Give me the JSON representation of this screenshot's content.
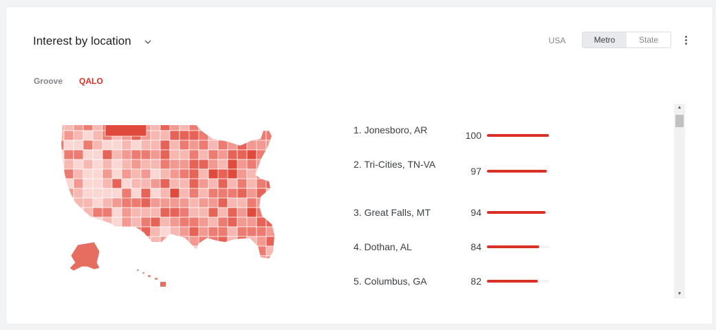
{
  "header": {
    "title": "Interest by location",
    "title_dropdown_icon": "chevron-down-icon",
    "menu_icon": "more-vert-icon"
  },
  "geo_resolution": {
    "country": "USA",
    "options": [
      "Metro",
      "State"
    ],
    "selected": "Metro"
  },
  "terms": [
    {
      "label": "Groove",
      "color": "#80868b",
      "selected": false
    },
    {
      "label": "QALO",
      "color": "#d93025",
      "selected": true
    }
  ],
  "map": {
    "region": "USA",
    "resolution": "Metro",
    "color": "#d93025"
  },
  "ranking": [
    {
      "label": "1. Jonesboro, AR",
      "value": 100,
      "display": "100"
    },
    {
      "label": "2. Tri-Cities, TN-VA",
      "value": 97,
      "display": "97"
    },
    {
      "label": "3. Great Falls, MT",
      "value": 94,
      "display": "94"
    },
    {
      "label": "4. Dothan, AL",
      "value": 84,
      "display": "84"
    },
    {
      "label": "5. Columbus, GA",
      "value": 82,
      "display": "82"
    }
  ],
  "scrollbar": {
    "up_icon": "arrow-up-icon",
    "down_icon": "arrow-down-icon"
  }
}
